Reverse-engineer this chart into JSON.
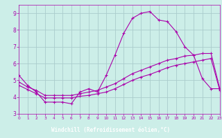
{
  "xlabel": "Windchill (Refroidissement éolien,°C)",
  "bg_color": "#cceee8",
  "grid_color": "#aacccc",
  "line_color": "#aa00aa",
  "xlabel_bg": "#330066",
  "xlabel_fg": "#ffffff",
  "xmin": 0,
  "xmax": 23,
  "ymin": 3,
  "ymax": 9.5,
  "line1_x": [
    0,
    1,
    2,
    3,
    4,
    5,
    6,
    7,
    8,
    9,
    10,
    11,
    12,
    13,
    14,
    15,
    16,
    17,
    18,
    19,
    20,
    21,
    22,
    23
  ],
  "line1_y": [
    5.3,
    4.7,
    4.3,
    3.7,
    3.7,
    3.7,
    3.6,
    4.3,
    4.5,
    4.3,
    5.3,
    6.5,
    7.8,
    8.7,
    9.0,
    9.1,
    8.6,
    8.5,
    7.9,
    7.0,
    6.5,
    5.1,
    4.5,
    4.5
  ],
  "line2_x": [
    0,
    1,
    2,
    3,
    4,
    5,
    6,
    7,
    8,
    9,
    10,
    11,
    12,
    13,
    14,
    15,
    16,
    17,
    18,
    19,
    20,
    21,
    22,
    23
  ],
  "line2_y": [
    4.9,
    4.6,
    4.4,
    4.1,
    4.1,
    4.1,
    4.1,
    4.2,
    4.3,
    4.4,
    4.6,
    4.8,
    5.1,
    5.4,
    5.6,
    5.8,
    6.0,
    6.2,
    6.3,
    6.45,
    6.5,
    6.6,
    6.6,
    4.5
  ],
  "line3_x": [
    0,
    1,
    2,
    3,
    4,
    5,
    6,
    7,
    8,
    9,
    10,
    11,
    12,
    13,
    14,
    15,
    16,
    17,
    18,
    19,
    20,
    21,
    22,
    23
  ],
  "line3_y": [
    4.7,
    4.45,
    4.2,
    3.95,
    3.95,
    3.95,
    3.95,
    4.05,
    4.1,
    4.2,
    4.3,
    4.5,
    4.75,
    5.0,
    5.2,
    5.35,
    5.55,
    5.75,
    5.9,
    6.0,
    6.1,
    6.2,
    6.3,
    4.4
  ],
  "yticks": [
    3,
    4,
    5,
    6,
    7,
    8,
    9
  ],
  "xticks": [
    0,
    1,
    2,
    3,
    4,
    5,
    6,
    7,
    8,
    9,
    10,
    11,
    12,
    13,
    14,
    15,
    16,
    17,
    18,
    19,
    20,
    21,
    22,
    23
  ]
}
